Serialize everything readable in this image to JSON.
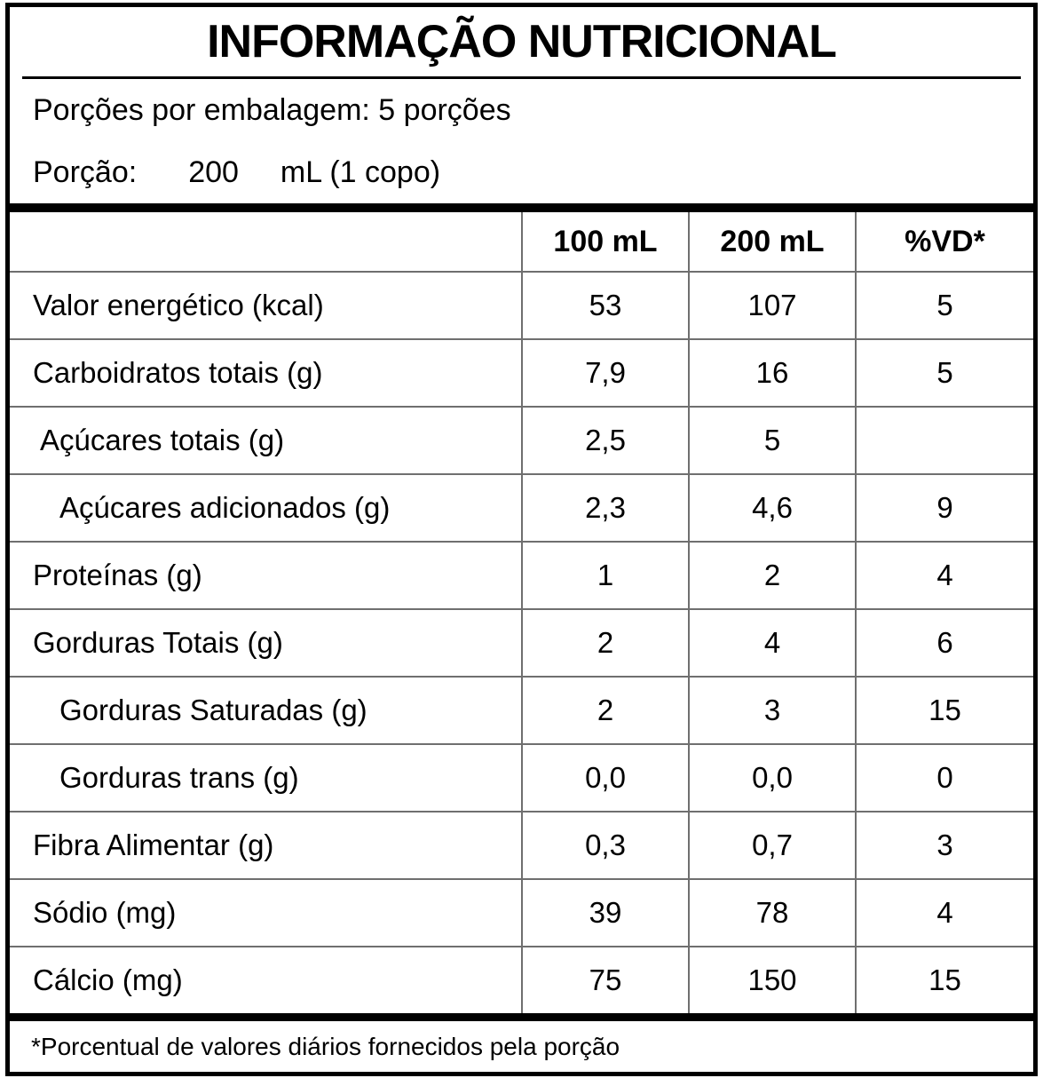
{
  "title": "INFORMAÇÃO NUTRICIONAL",
  "servings_per_package": "Porções por embalagem: 5 porções",
  "serving_row": {
    "label": "Porção:",
    "amount": "200",
    "unit": "mL (1 copo)"
  },
  "table": {
    "columns": [
      "100 mL",
      "200 mL",
      "%VD*"
    ],
    "rows": [
      {
        "label": "Valor energético (kcal)",
        "v100": "53",
        "v200": "107",
        "vd": "5"
      },
      {
        "label": "Carboidratos totais (g)",
        "v100": "7,9",
        "v200": "16",
        "vd": "5"
      },
      {
        "label": "Açúcares totais (g)",
        "v100": "2,5",
        "v200": "5",
        "vd": ""
      },
      {
        "label": "Açúcares adicionados (g)",
        "v100": "2,3",
        "v200": "4,6",
        "vd": "9"
      },
      {
        "label": "Proteínas (g)",
        "v100": "1",
        "v200": "2",
        "vd": "4"
      },
      {
        "label": "Gorduras Totais (g)",
        "v100": "2",
        "v200": "4",
        "vd": "6"
      },
      {
        "label": "Gorduras Saturadas (g)",
        "v100": "2",
        "v200": "3",
        "vd": "15"
      },
      {
        "label": "Gorduras trans (g)",
        "v100": "0,0",
        "v200": "0,0",
        "vd": "0"
      },
      {
        "label": "Fibra Alimentar (g)",
        "v100": "0,3",
        "v200": "0,7",
        "vd": "3"
      },
      {
        "label": "Sódio (mg)",
        "v100": "39",
        "v200": "78",
        "vd": "4"
      },
      {
        "label": "Cálcio (mg)",
        "v100": "75",
        "v200": "150",
        "vd": "15"
      }
    ]
  },
  "footnote": "*Porcentual de valores diários fornecidos pela porção",
  "colors": {
    "background": "#ffffff",
    "text": "#000000",
    "outer_border": "#000000",
    "grid_lines": "#6f6f6f"
  }
}
